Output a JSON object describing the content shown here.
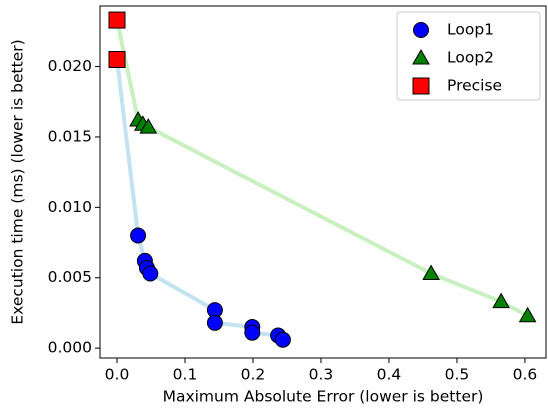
{
  "chart_data": {
    "type": "scatter",
    "x_label": "Maximum Absolute Error (lower is better)",
    "y_label": "Execution time (ms) (lower is better)",
    "xlim": [
      -0.025,
      0.631
    ],
    "ylim": [
      -0.0007,
      0.0243
    ],
    "xticks": [
      {
        "value": 0,
        "label": "0.0"
      },
      0.1,
      0.2,
      0.3,
      0.4,
      0.5,
      0.6
    ],
    "yticks": [
      {
        "value": 0,
        "label": "0.000"
      },
      {
        "value": 0.005,
        "label": "0.005"
      },
      {
        "value": 0.01,
        "label": "0.010"
      },
      {
        "value": 0.015,
        "label": "0.015"
      },
      {
        "value": 0.02,
        "label": "0.020"
      }
    ],
    "legend": "upper right",
    "series": [
      {
        "name": "Loop1",
        "color": "#0000ff",
        "marker": "circle",
        "x": [
          0.031,
          0.041,
          0.044,
          0.049,
          0.144,
          0.144,
          0.199,
          0.199,
          0.237,
          0.244
        ],
        "values": [
          0.008,
          0.0062,
          0.0057,
          0.0053,
          0.0027,
          0.0018,
          0.0015,
          0.0011,
          0.0009,
          0.0006
        ]
      },
      {
        "name": "Loop2",
        "color": "#008000",
        "marker": "triangle",
        "x": [
          0.031,
          0.038,
          0.046,
          0.462,
          0.565,
          0.604
        ],
        "values": [
          0.0162,
          0.0159,
          0.0157,
          0.0053,
          0.0033,
          0.0023
        ]
      },
      {
        "name": "Precise",
        "color": "#ff0000",
        "marker": "square",
        "x": [
          0.0,
          0.0
        ],
        "values": [
          0.0233,
          0.0205
        ]
      }
    ],
    "frontiers": [
      {
        "color": "#c3e3f0",
        "x": [
          0.0,
          0.031,
          0.041,
          0.044,
          0.049,
          0.144,
          0.144,
          0.199,
          0.199,
          0.237,
          0.244
        ],
        "values": [
          0.0205,
          0.008,
          0.0062,
          0.0057,
          0.0053,
          0.0027,
          0.0018,
          0.0015,
          0.0011,
          0.0009,
          0.0006
        ]
      },
      {
        "color": "#c8f0c0",
        "x": [
          0.0,
          0.031,
          0.038,
          0.046,
          0.462,
          0.565,
          0.604
        ],
        "values": [
          0.0233,
          0.0162,
          0.0159,
          0.0157,
          0.0053,
          0.0033,
          0.0023
        ]
      }
    ]
  }
}
